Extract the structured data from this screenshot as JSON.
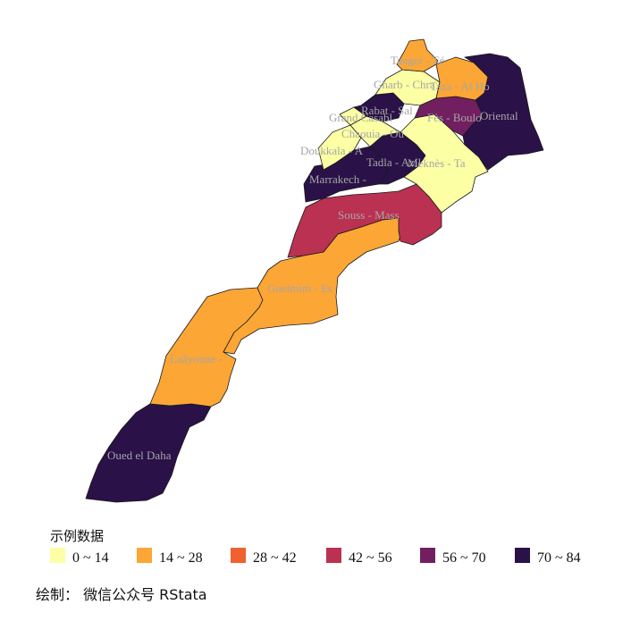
{
  "map": {
    "regions": [
      {
        "id": "tanger",
        "label": "Tanger - Té",
        "color": "#FCA636"
      },
      {
        "id": "gharb",
        "label": "Gharb - Chra",
        "color": "#FCFFA4"
      },
      {
        "id": "taza",
        "label": "Taza - Al Ho",
        "color": "#FCA636"
      },
      {
        "id": "oriental",
        "label": "Oriental",
        "color": "#2A1147"
      },
      {
        "id": "rabat",
        "label": "Rabat - Sal",
        "color": "#2A1147"
      },
      {
        "id": "grand-casablanca",
        "label": "Grand Casabl",
        "color": "#FCFFA4"
      },
      {
        "id": "fes",
        "label": "Fès - Boulo",
        "color": "#721F61"
      },
      {
        "id": "chaouia",
        "label": "Chaouia - Ou",
        "color": "#FCFFA4"
      },
      {
        "id": "doukkala",
        "label": "Doukkala - A",
        "color": "#FCFFA4"
      },
      {
        "id": "tadla",
        "label": "Tadla - Azil",
        "color": "#2A1147"
      },
      {
        "id": "meknes",
        "label": "Meknès - Ta",
        "color": "#FCFFA4"
      },
      {
        "id": "marrakech",
        "label": "Marrakech -",
        "color": "#2A1147"
      },
      {
        "id": "souss",
        "label": "Souss - Mass",
        "color": "#BA3151"
      },
      {
        "id": "guelmim",
        "label": "Guelmim - Es",
        "color": "#FCA636"
      },
      {
        "id": "laayoune",
        "label": "Laâyoune -",
        "color": "#FCA636"
      },
      {
        "id": "oued-eddahab",
        "label": "Oued el Daha",
        "color": "#2A1147"
      }
    ]
  },
  "legend": {
    "title": "示例数据",
    "items": [
      {
        "label": "0 ~ 14",
        "color": "#FCFFA4"
      },
      {
        "label": "14 ~ 28",
        "color": "#FCA636"
      },
      {
        "label": "28 ~ 42",
        "color": "#F1602F"
      },
      {
        "label": "42 ~ 56",
        "color": "#BA3151"
      },
      {
        "label": "56 ~ 70",
        "color": "#721F61"
      },
      {
        "label": "70 ~ 84",
        "color": "#2A1147"
      }
    ]
  },
  "caption": "绘制：  微信公众号 RStata"
}
